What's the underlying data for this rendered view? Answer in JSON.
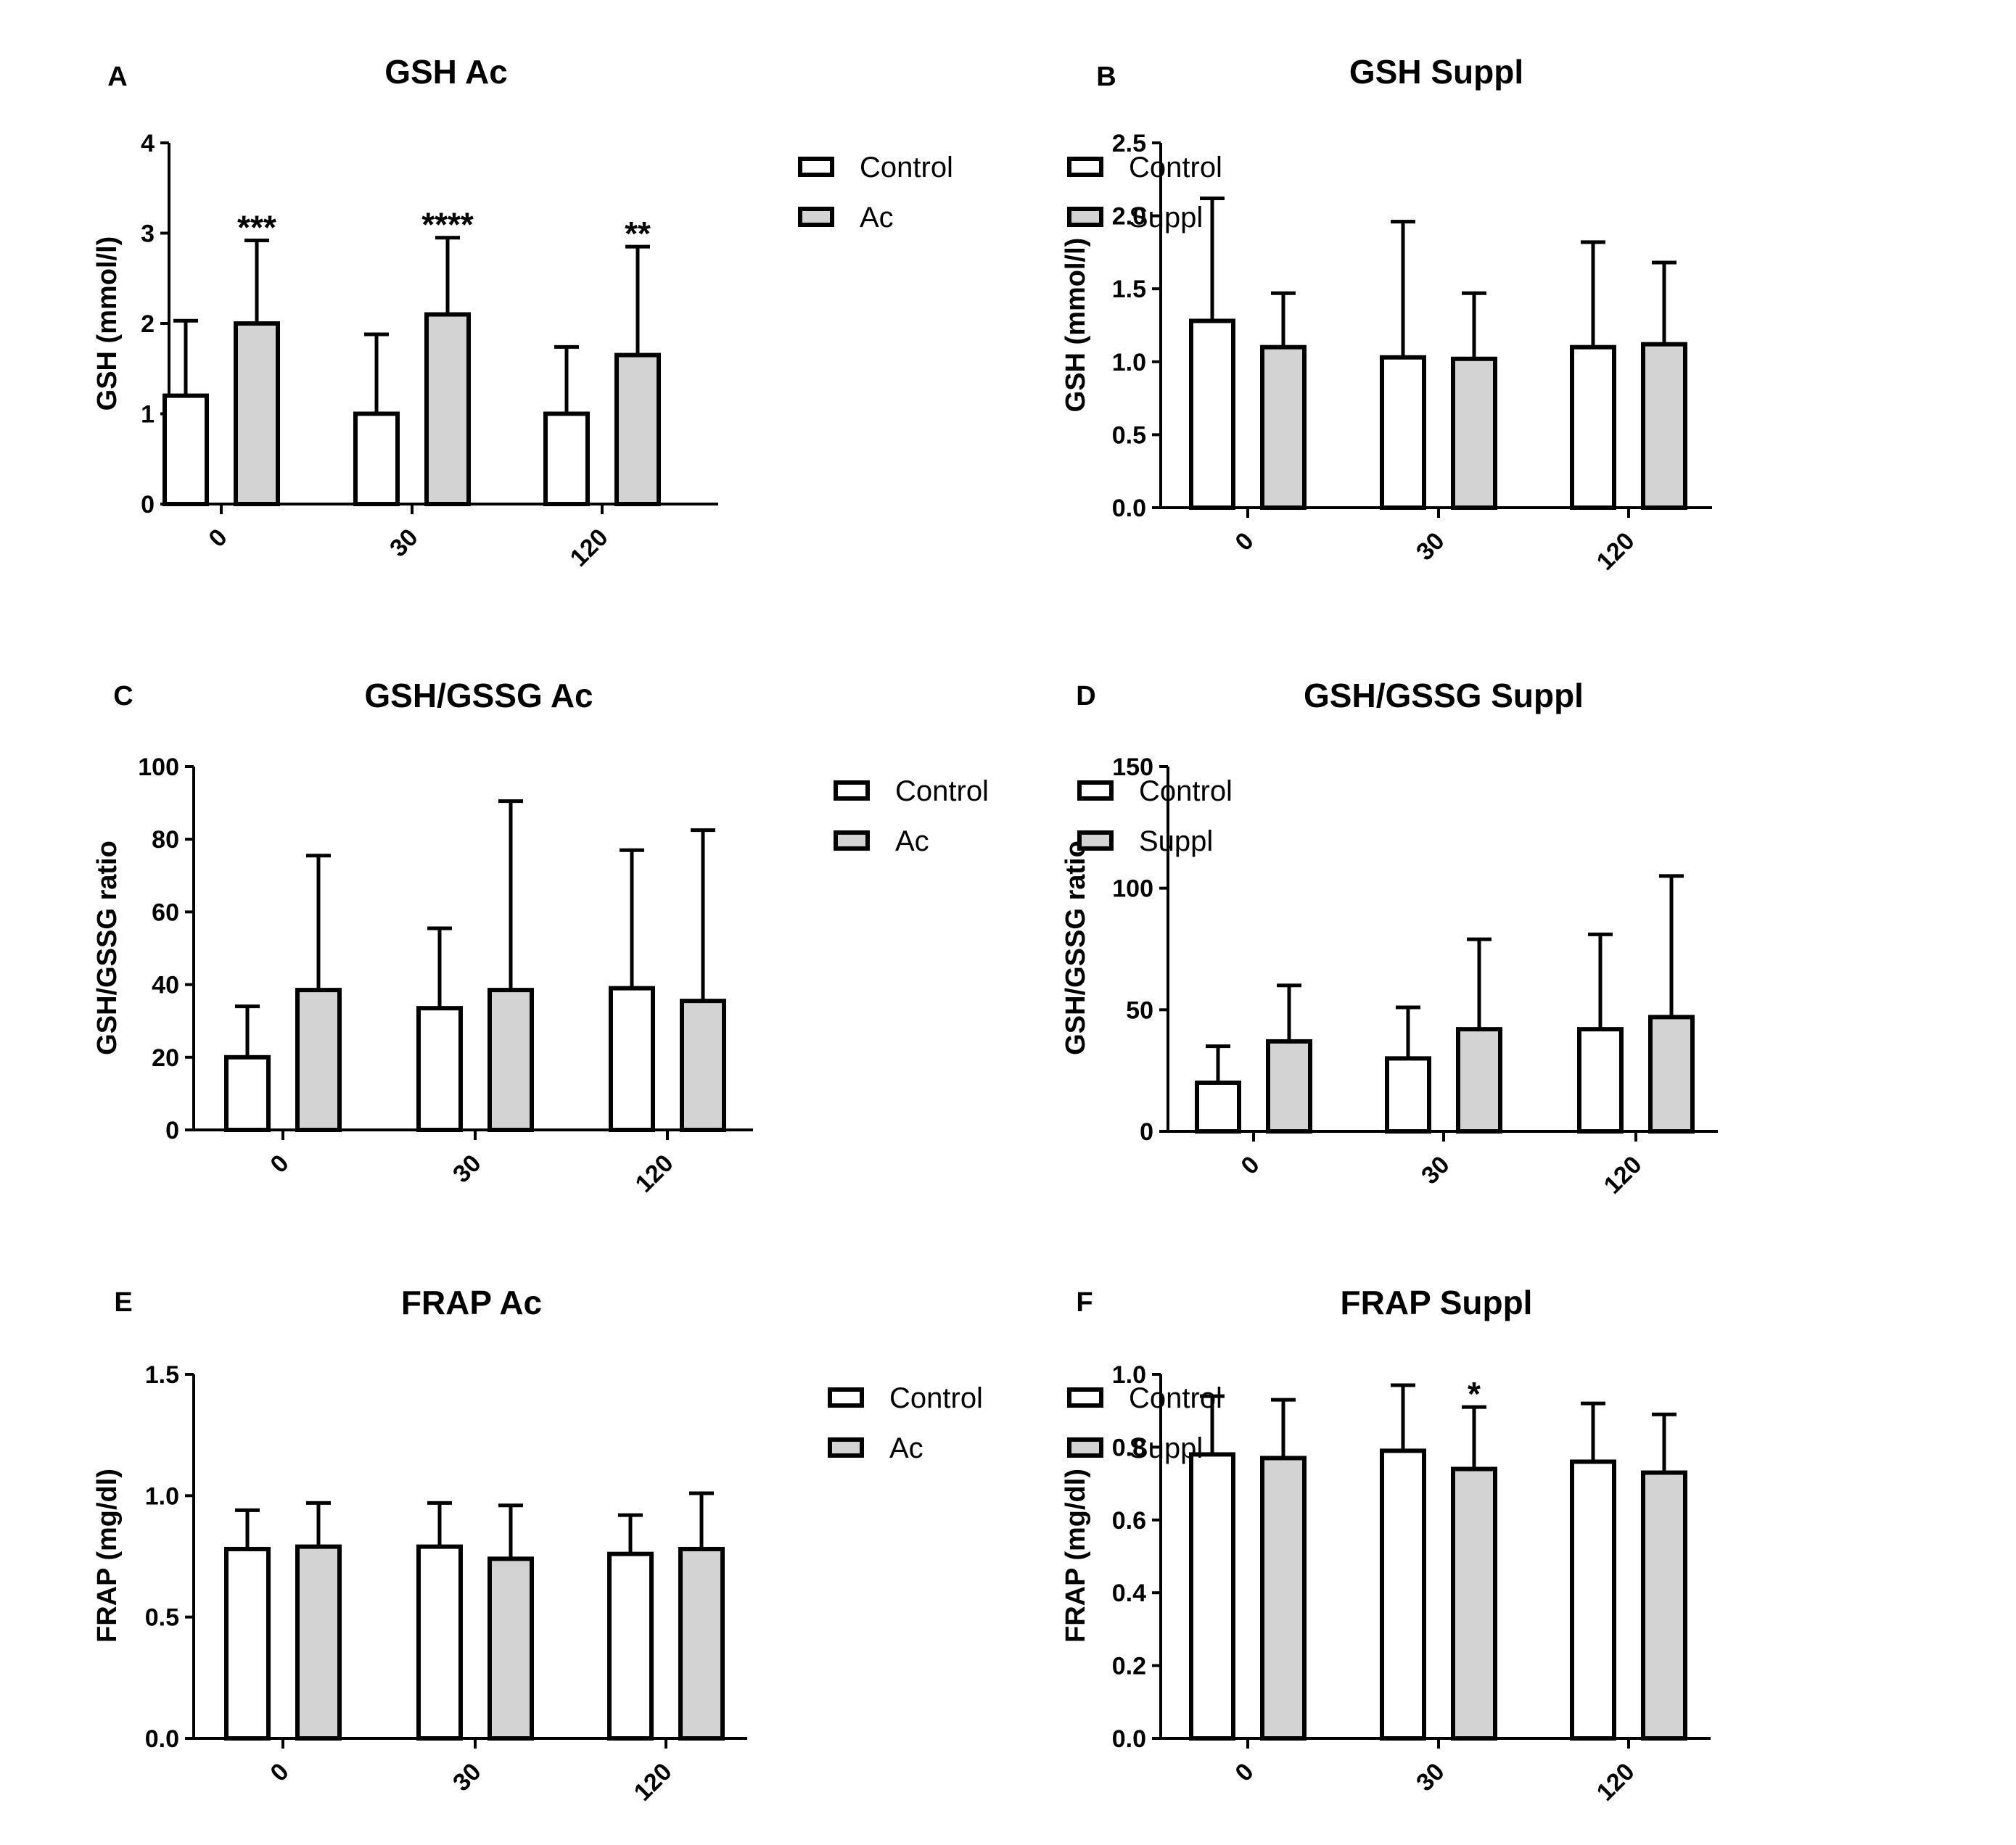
{
  "chart_data": [
    {
      "panel": "A",
      "type": "bar",
      "title": "GSH Ac",
      "xlabel": "",
      "ylabel": "GSH (mmol/l)",
      "ylim": [
        0,
        4
      ],
      "yticks": [
        0,
        1,
        2,
        3,
        4
      ],
      "ytick_labels": [
        "0",
        "1",
        "2",
        "3",
        "4"
      ],
      "categories": [
        "0",
        "30",
        "120"
      ],
      "series": [
        {
          "name": "Control",
          "color": "#ffffff",
          "values": [
            1.2,
            1.0,
            1.0
          ],
          "errors": [
            0.83,
            0.88,
            0.74
          ]
        },
        {
          "name": "Ac",
          "color": "#d3d3d3",
          "values": [
            2.0,
            2.1,
            1.65
          ],
          "errors": [
            0.92,
            0.85,
            1.2
          ]
        }
      ],
      "annotations": [
        {
          "category": "0",
          "series": "Ac",
          "text": "***"
        },
        {
          "category": "30",
          "series": "Ac",
          "text": "****"
        },
        {
          "category": "120",
          "series": "Ac",
          "text": "**"
        }
      ]
    },
    {
      "panel": "B",
      "type": "bar",
      "title": "GSH Suppl",
      "xlabel": "",
      "ylabel": "GSH (mmol/l)",
      "ylim": [
        0,
        2.5
      ],
      "yticks": [
        0,
        0.5,
        1,
        1.5,
        2,
        2.5
      ],
      "ytick_labels": [
        "0.0",
        "0.5",
        "1.0",
        "1.5",
        "2.0",
        "2.5"
      ],
      "categories": [
        "0",
        "30",
        "120"
      ],
      "series": [
        {
          "name": "Control",
          "color": "#ffffff",
          "values": [
            1.28,
            1.03,
            1.1
          ],
          "errors": [
            0.84,
            0.93,
            0.72
          ]
        },
        {
          "name": "Suppl",
          "color": "#d3d3d3",
          "values": [
            1.1,
            1.02,
            1.12
          ],
          "errors": [
            0.37,
            0.45,
            0.56
          ]
        }
      ],
      "annotations": []
    },
    {
      "panel": "C",
      "type": "bar",
      "title": "GSH/GSSG Ac",
      "xlabel": "",
      "ylabel": "GSH/GSSG ratio",
      "ylim": [
        0,
        100
      ],
      "yticks": [
        0,
        20,
        40,
        60,
        80,
        100
      ],
      "ytick_labels": [
        "0",
        "20",
        "40",
        "60",
        "80",
        "100"
      ],
      "categories": [
        "0",
        "30",
        "120"
      ],
      "series": [
        {
          "name": "Control",
          "color": "#ffffff",
          "values": [
            20,
            33.5,
            39
          ],
          "errors": [
            14,
            22,
            38
          ]
        },
        {
          "name": "Ac",
          "color": "#d3d3d3",
          "values": [
            38.5,
            38.5,
            35.5
          ],
          "errors": [
            37,
            52,
            47
          ]
        }
      ],
      "annotations": []
    },
    {
      "panel": "D",
      "type": "bar",
      "title": "GSH/GSSG Suppl",
      "xlabel": "",
      "ylabel": "GSH/GSSG ratio",
      "ylim": [
        0,
        150
      ],
      "yticks": [
        0,
        50,
        100,
        150
      ],
      "ytick_labels": [
        "0",
        "50",
        "100",
        "150"
      ],
      "categories": [
        "0",
        "30",
        "120"
      ],
      "series": [
        {
          "name": "Control",
          "color": "#ffffff",
          "values": [
            20,
            30,
            42
          ],
          "errors": [
            15,
            21,
            39
          ]
        },
        {
          "name": "Suppl",
          "color": "#d3d3d3",
          "values": [
            37,
            42,
            47
          ],
          "errors": [
            23,
            37,
            58
          ]
        }
      ],
      "annotations": []
    },
    {
      "panel": "E",
      "type": "bar",
      "title": "FRAP Ac",
      "xlabel": "",
      "ylabel": "FRAP (mg/dl)",
      "ylim": [
        0,
        1.5
      ],
      "yticks": [
        0,
        0.5,
        1,
        1.5
      ],
      "ytick_labels": [
        "0.0",
        "0.5",
        "1.0",
        "1.5"
      ],
      "categories": [
        "0",
        "30",
        "120"
      ],
      "series": [
        {
          "name": "Control",
          "color": "#ffffff",
          "values": [
            0.78,
            0.79,
            0.76
          ],
          "errors": [
            0.16,
            0.18,
            0.16
          ]
        },
        {
          "name": "Ac",
          "color": "#d3d3d3",
          "values": [
            0.79,
            0.74,
            0.78
          ],
          "errors": [
            0.18,
            0.22,
            0.23
          ]
        }
      ],
      "annotations": []
    },
    {
      "panel": "F",
      "type": "bar",
      "title": "FRAP Suppl",
      "xlabel": "",
      "ylabel": "FRAP (mg/dl)",
      "ylim": [
        0,
        1.0
      ],
      "yticks": [
        0,
        0.2,
        0.4,
        0.6,
        0.8,
        1.0
      ],
      "ytick_labels": [
        "0.0",
        "0.2",
        "0.4",
        "0.6",
        "0.8",
        "1.0"
      ],
      "categories": [
        "0",
        "30",
        "120"
      ],
      "series": [
        {
          "name": "Control",
          "color": "#ffffff",
          "values": [
            0.78,
            0.79,
            0.76
          ],
          "errors": [
            0.16,
            0.18,
            0.16
          ]
        },
        {
          "name": "Suppl",
          "color": "#d3d3d3",
          "values": [
            0.77,
            0.74,
            0.73
          ],
          "errors": [
            0.16,
            0.17,
            0.16
          ]
        }
      ],
      "annotations": [
        {
          "category": "30",
          "series": "Suppl",
          "text": "*"
        }
      ]
    }
  ]
}
